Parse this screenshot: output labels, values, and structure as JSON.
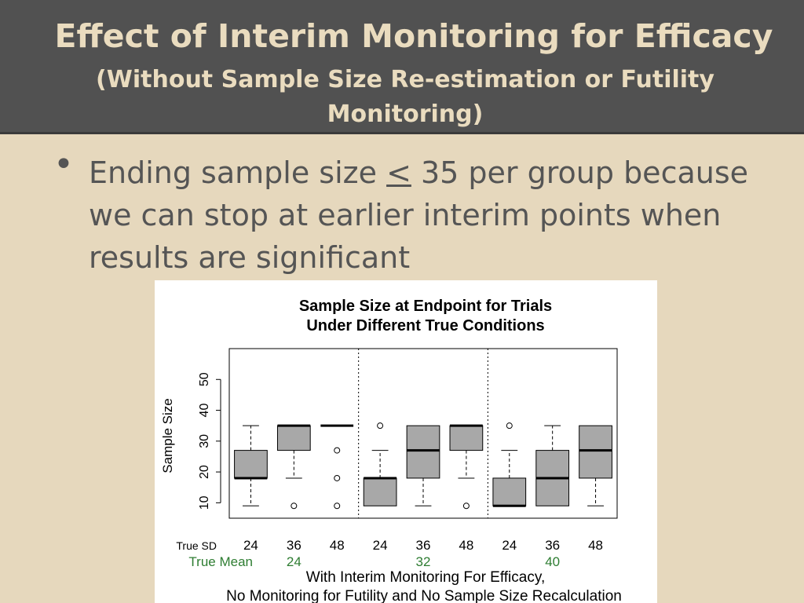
{
  "slide": {
    "title": "Effect of Interim Monitoring for Efficacy",
    "subtitle": "(Without Sample Size Re-estimation or Futility Monitoring)",
    "bullet": {
      "before": "Ending sample size ",
      "symbol": "<",
      "after": " 35 per group because we can stop at earlier interim points when results are significant"
    }
  },
  "chart_data": {
    "type": "boxplot",
    "title_lines": [
      "Sample Size at Endpoint for Trials",
      "Under Different True Conditions"
    ],
    "ylabel": "Sample Size",
    "ylim": [
      5,
      60
    ],
    "yticks": [
      10,
      20,
      30,
      40,
      50
    ],
    "row_labels": {
      "sd": "True SD",
      "mean": "True Mean"
    },
    "categories": [
      "24",
      "36",
      "48",
      "24",
      "36",
      "48",
      "24",
      "36",
      "48"
    ],
    "mean_groups": [
      "24",
      "32",
      "40"
    ],
    "xlabel_lines": [
      "With Interim Monitoring For Efficacy,",
      "No Monitoring for Futility and No Sample Size Recalculation"
    ],
    "boxes": [
      {
        "whisker_low": 9,
        "q1": 18,
        "median": 18,
        "q3": 27,
        "whisker_high": 35,
        "outliers": []
      },
      {
        "whisker_low": 18,
        "q1": 27,
        "median": 35,
        "q3": 35,
        "whisker_high": 35,
        "outliers": [
          9
        ]
      },
      {
        "whisker_low": 35,
        "q1": 35,
        "median": 35,
        "q3": 35,
        "whisker_high": 35,
        "outliers": [
          27,
          18,
          9
        ]
      },
      {
        "whisker_low": 9,
        "q1": 9,
        "median": 18,
        "q3": 18,
        "whisker_high": 27,
        "outliers": [
          35
        ]
      },
      {
        "whisker_low": 9,
        "q1": 18,
        "median": 27,
        "q3": 35,
        "whisker_high": 35,
        "outliers": []
      },
      {
        "whisker_low": 18,
        "q1": 27,
        "median": 35,
        "q3": 35,
        "whisker_high": 35,
        "outliers": [
          9
        ]
      },
      {
        "whisker_low": 9,
        "q1": 9,
        "median": 9,
        "q3": 18,
        "whisker_high": 27,
        "outliers": [
          35
        ]
      },
      {
        "whisker_low": 9,
        "q1": 9,
        "median": 18,
        "q3": 27,
        "whisker_high": 35,
        "outliers": []
      },
      {
        "whisker_low": 9,
        "q1": 18,
        "median": 27,
        "q3": 35,
        "whisker_high": 35,
        "outliers": []
      }
    ],
    "colors": {
      "box_fill": "#a8a8a8",
      "mean_label": "#2e7d32"
    }
  }
}
